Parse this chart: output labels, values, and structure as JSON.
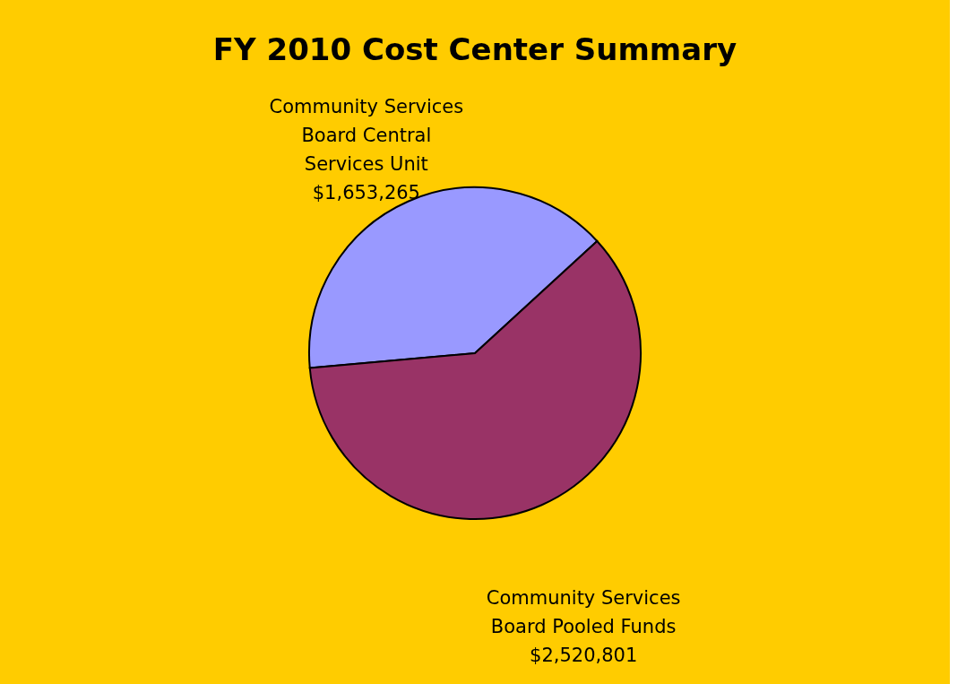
{
  "chart_data": {
    "type": "pie",
    "title": "FY 2010 Cost Center Summary",
    "categories": [
      "Community Services Board Central Services Unit",
      "Community Services Board Pooled Funds"
    ],
    "values": [
      1653265,
      2520801
    ],
    "colors": [
      "#9999ff",
      "#993366"
    ],
    "value_labels": [
      "$1,653,265",
      "$2,520,801"
    ],
    "legend": false
  }
}
